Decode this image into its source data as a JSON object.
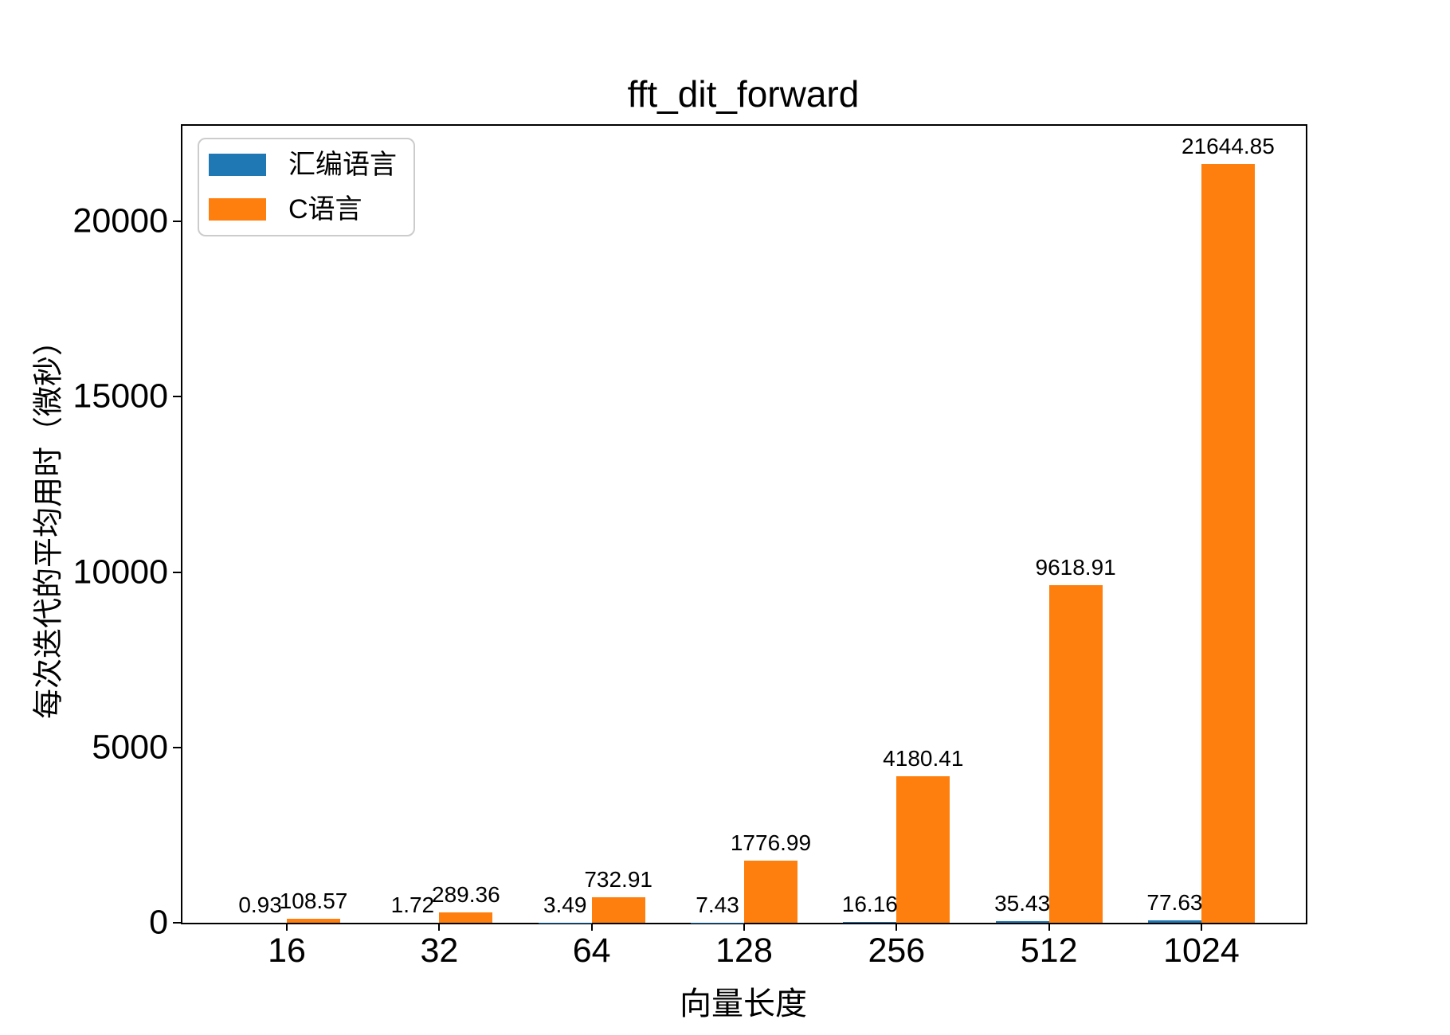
{
  "chart_data": {
    "type": "bar",
    "title": "fft_dit_forward",
    "xlabel": "向量长度",
    "ylabel": "每次迭代的平均用时（微秒）",
    "categories": [
      "16",
      "32",
      "64",
      "128",
      "256",
      "512",
      "1024"
    ],
    "series": [
      {
        "name": "汇编语言",
        "color": "#1f77b4",
        "values": [
          0.93,
          1.72,
          3.49,
          7.43,
          16.16,
          35.43,
          77.63
        ],
        "value_labels": [
          "0.93",
          "1.72",
          "3.49",
          "7.43",
          "16.16",
          "35.43",
          "77.63"
        ]
      },
      {
        "name": "C语言",
        "color": "#ff7f0e",
        "values": [
          108.57,
          289.36,
          732.91,
          1776.99,
          4180.41,
          9618.91,
          21644.85
        ],
        "value_labels": [
          "108.57",
          "289.36",
          "732.91",
          "1776.99",
          "4180.41",
          "9618.91",
          "21644.85"
        ]
      }
    ],
    "yticks": [
      "0",
      "5000",
      "10000",
      "15000",
      "20000"
    ],
    "ylim": [
      0,
      22727
    ],
    "bar_width_units": 0.35,
    "grid": false,
    "legend_position": "upper-left",
    "frame_color": "#000000",
    "background_color": "#ffffff"
  }
}
